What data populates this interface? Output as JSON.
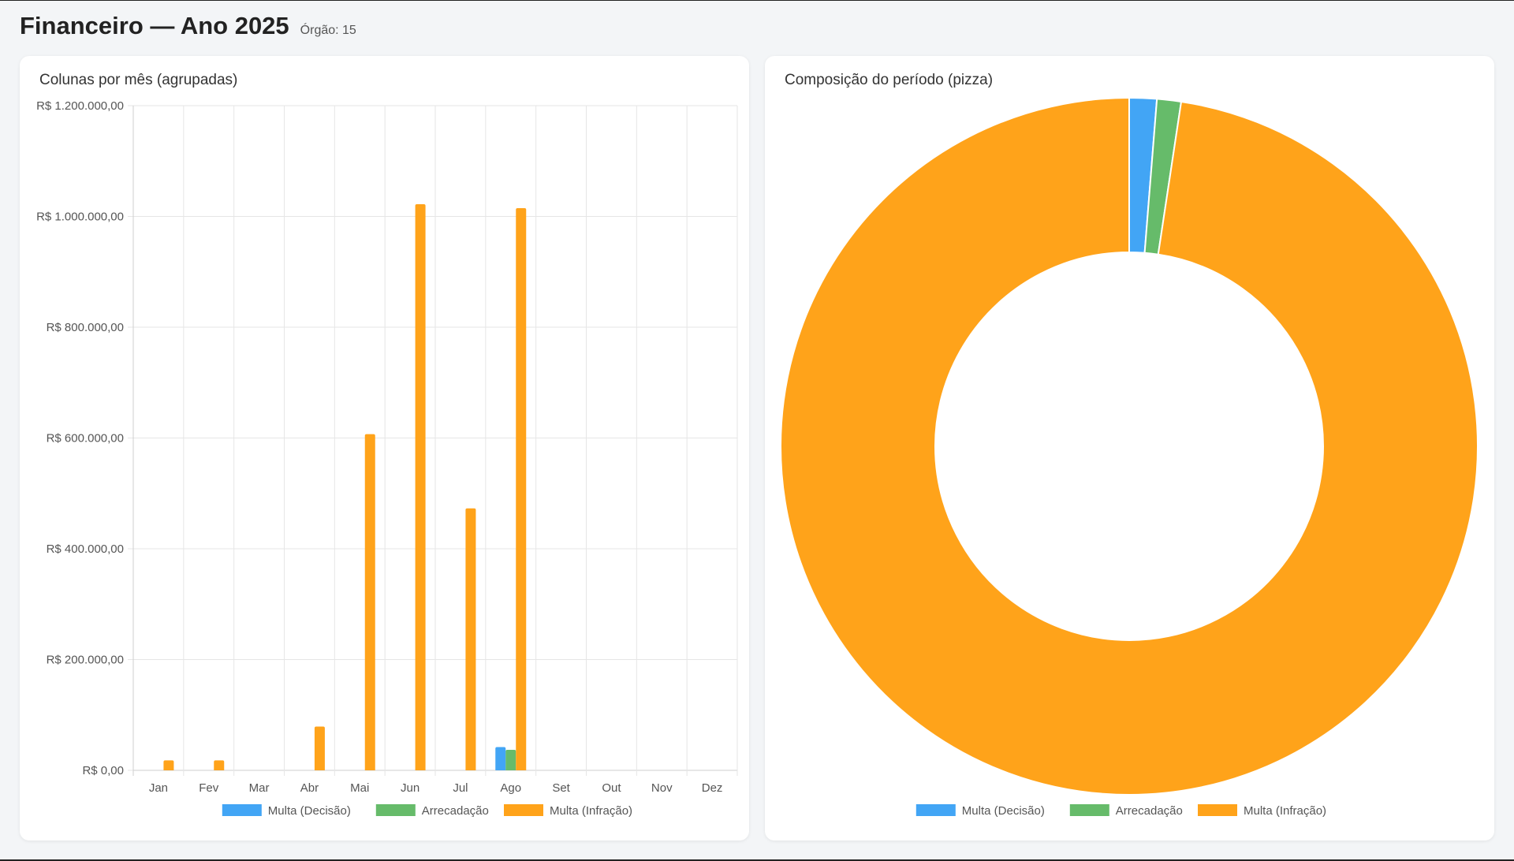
{
  "header": {
    "title": "Financeiro — Ano 2025",
    "subtitle": "Órgão: 15"
  },
  "colors": {
    "multa_decisao": "#42a5f5",
    "arrecadacao": "#66bb6a",
    "multa_infracao": "#ffa31a"
  },
  "chart_data": [
    {
      "type": "bar",
      "title": "Colunas por mês (agrupadas)",
      "categories": [
        "Jan",
        "Fev",
        "Mar",
        "Abr",
        "Mai",
        "Jun",
        "Jul",
        "Ago",
        "Set",
        "Out",
        "Nov",
        "Dez"
      ],
      "series": [
        {
          "name": "Multa (Decisão)",
          "color": "#42a5f5",
          "values": [
            0,
            0,
            0,
            0,
            0,
            0,
            0,
            42000,
            0,
            0,
            0,
            0
          ]
        },
        {
          "name": "Arrecadação",
          "color": "#66bb6a",
          "values": [
            0,
            0,
            0,
            0,
            0,
            0,
            0,
            37000,
            0,
            0,
            0,
            0
          ]
        },
        {
          "name": "Multa (Infração)",
          "color": "#ffa31a",
          "values": [
            18000,
            18000,
            0,
            79000,
            607000,
            1022000,
            473000,
            1015000,
            0,
            0,
            0,
            0
          ]
        }
      ],
      "ylim": [
        0,
        1200000
      ],
      "yticks": [
        0,
        200000,
        400000,
        600000,
        800000,
        1000000,
        1200000
      ],
      "ytick_labels": [
        "R$ 0,00",
        "R$ 200.000,00",
        "R$ 400.000,00",
        "R$ 600.000,00",
        "R$ 800.000,00",
        "R$ 1.000.000,00",
        "R$ 1.200.000,00"
      ],
      "grid": true,
      "legend": "bottom"
    },
    {
      "type": "pie",
      "title": "Composição do período (pizza)",
      "labels": [
        "Multa (Decisão)",
        "Arrecadação",
        "Multa (Infração)"
      ],
      "values": [
        42000,
        37000,
        3232000
      ],
      "colors": [
        "#42a5f5",
        "#66bb6a",
        "#ffa31a"
      ],
      "legend": "bottom"
    }
  ]
}
